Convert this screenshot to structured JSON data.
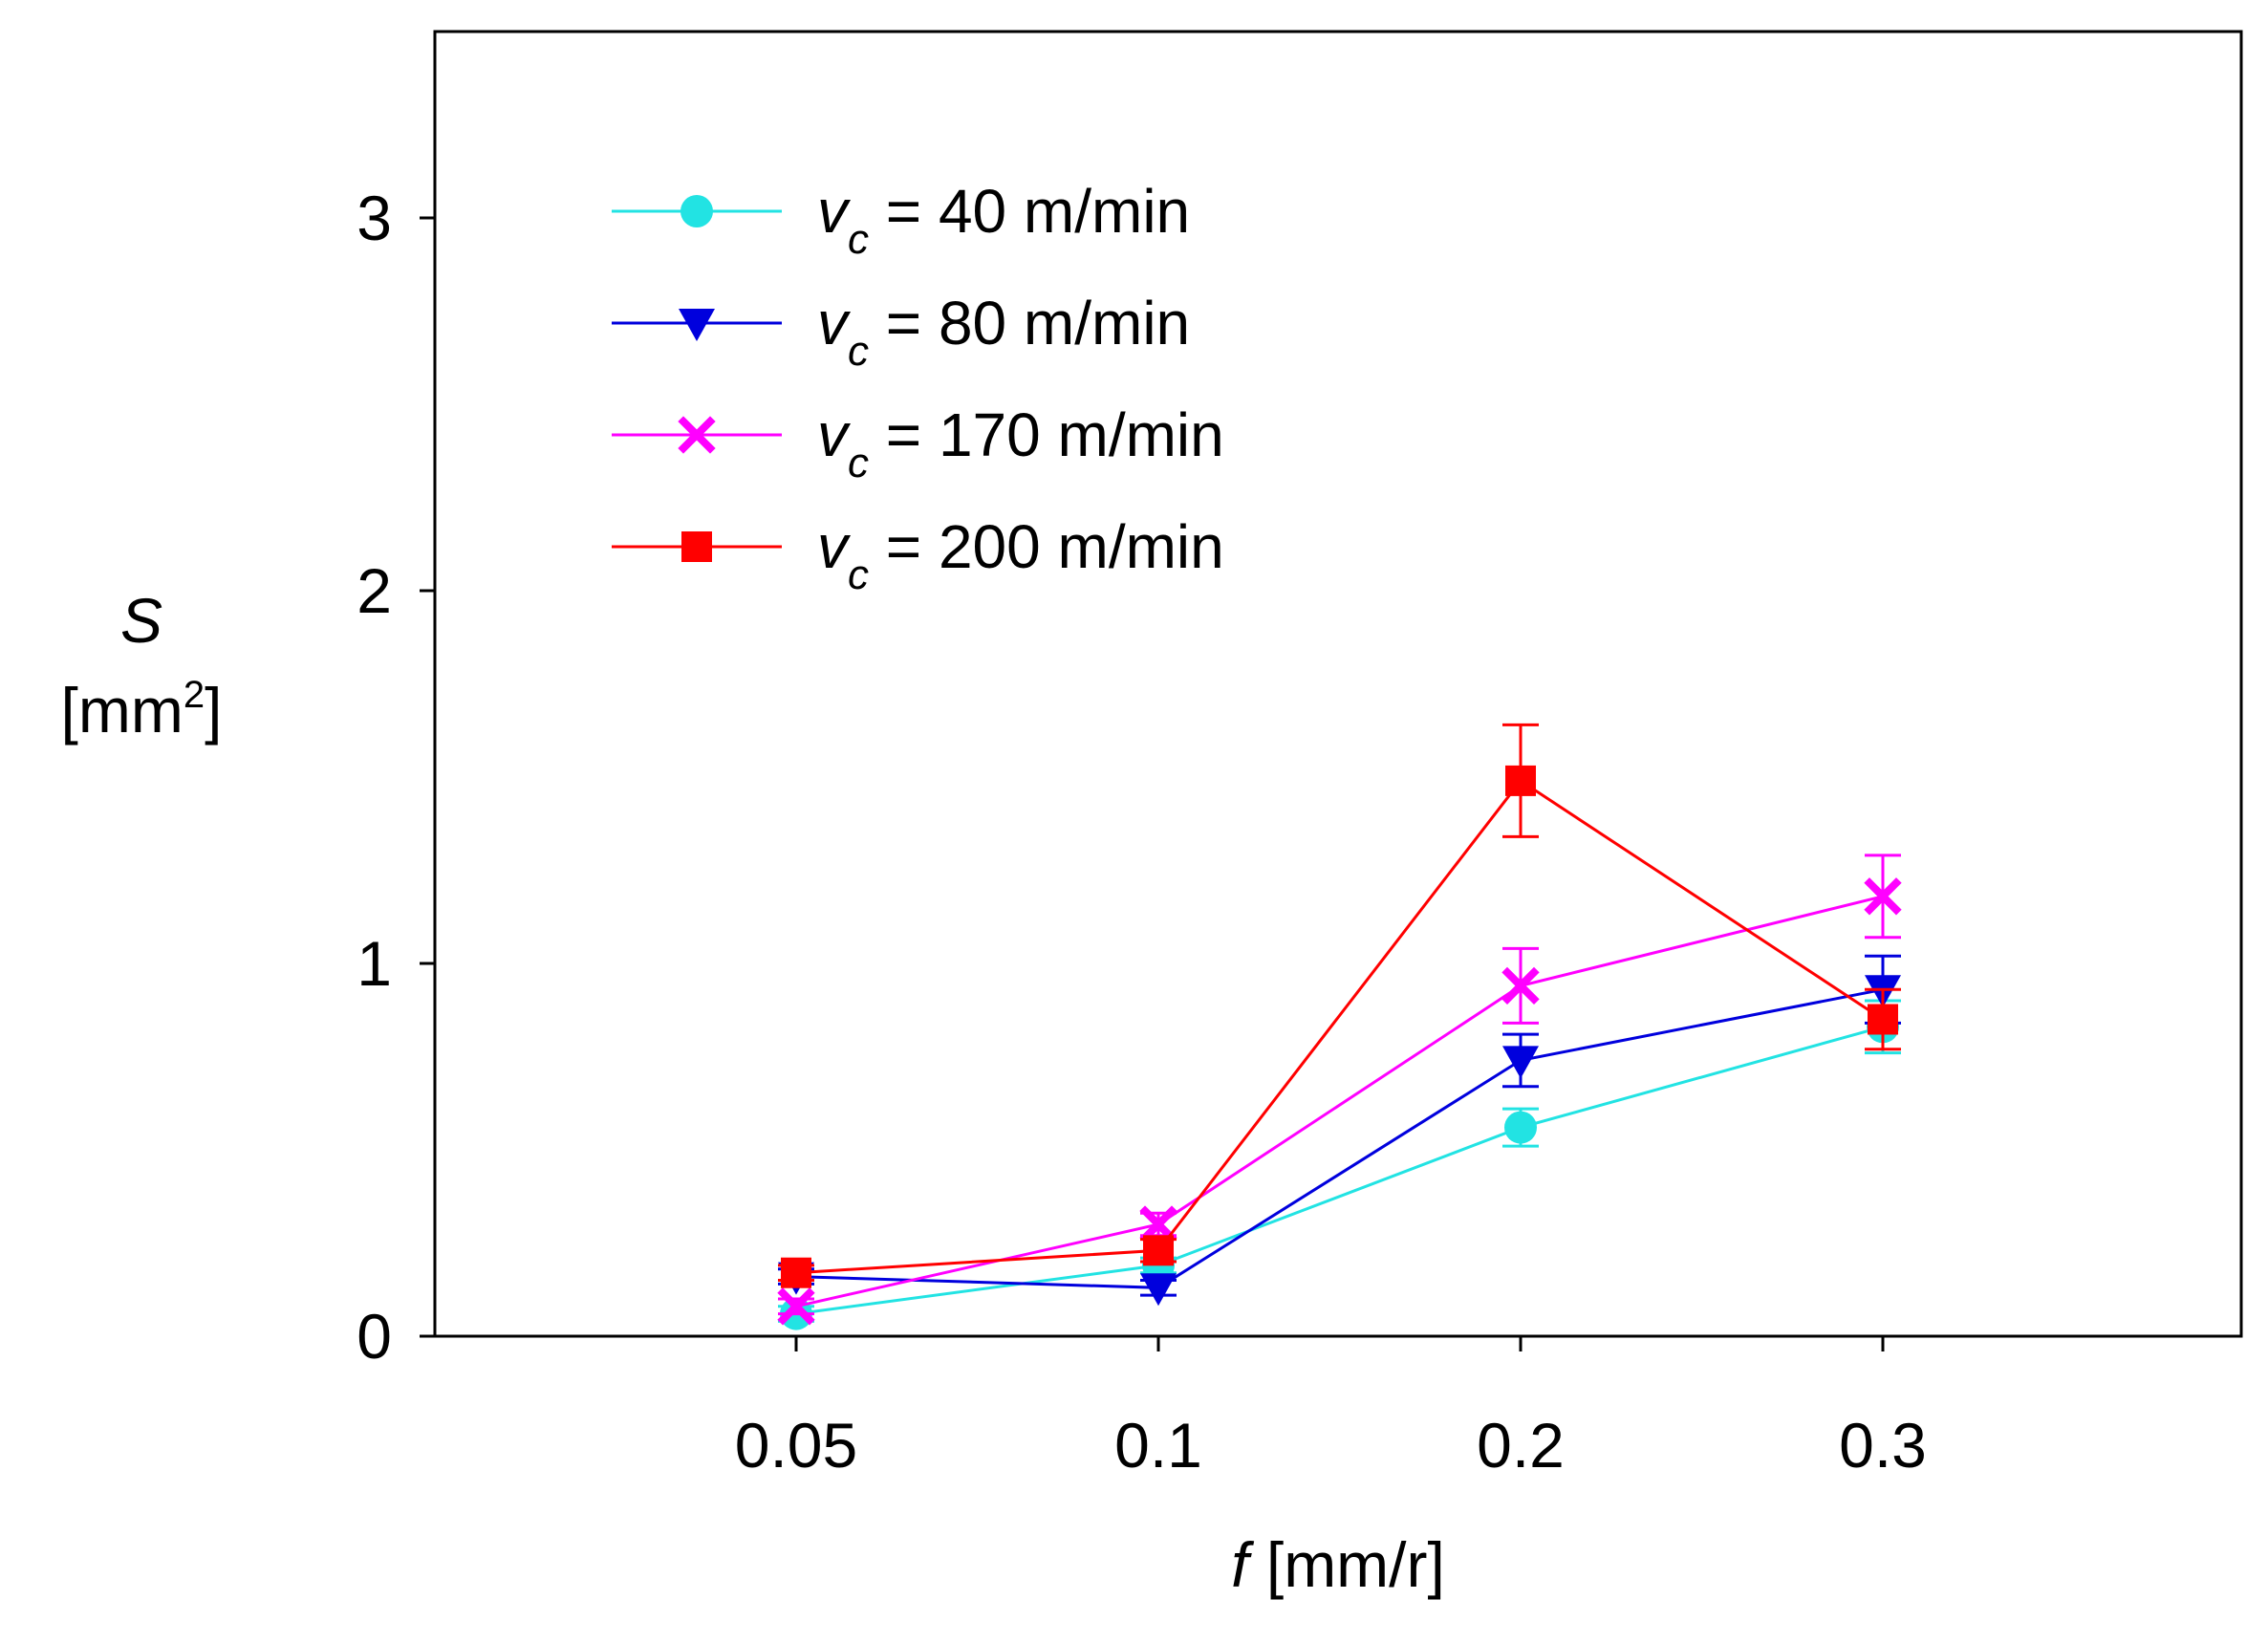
{
  "chart_data": {
    "type": "line",
    "title": "",
    "xlabel": {
      "var": "f",
      "unit": "[mm/r]"
    },
    "ylabel": {
      "var": "S",
      "unit_base": "[mm",
      "unit_sup": "2",
      "unit_close": "]"
    },
    "categories": [
      "0.05",
      "0.1",
      "0.2",
      "0.3"
    ],
    "ylim": [
      0,
      3.5
    ],
    "yticks": [
      0,
      1,
      2,
      3
    ],
    "grid": false,
    "legend_position": "top-left",
    "series": [
      {
        "name": "v_c = 40 m/min",
        "name_var": "v",
        "name_sub": "c",
        "name_rest": " = 40 m/min",
        "color": "#22e3e3",
        "marker": "circle",
        "values": [
          0.06,
          0.19,
          0.56,
          0.83
        ],
        "errors": [
          0.02,
          0.02,
          0.05,
          0.07
        ]
      },
      {
        "name": "v_c = 80 m/min",
        "name_var": "v",
        "name_sub": "c",
        "name_rest": " = 80 m/min",
        "color": "#0000dd",
        "marker": "triangle-down",
        "values": [
          0.16,
          0.13,
          0.74,
          0.93
        ],
        "errors": [
          0.02,
          0.02,
          0.07,
          0.09
        ]
      },
      {
        "name": "v_c = 170 m/min",
        "name_var": "v",
        "name_sub": "c",
        "name_rest": " = 170 m/min",
        "color": "#ff00ff",
        "marker": "x",
        "values": [
          0.08,
          0.3,
          0.94,
          1.18
        ],
        "errors": [
          0.02,
          0.03,
          0.1,
          0.11
        ]
      },
      {
        "name": "v_c = 200 m/min",
        "name_var": "v",
        "name_sub": "c",
        "name_rest": " = 200 m/min",
        "color": "#ff0000",
        "marker": "square",
        "values": [
          0.17,
          0.23,
          1.49,
          0.85
        ],
        "errors": [
          0.02,
          0.03,
          0.15,
          0.08
        ]
      }
    ]
  }
}
